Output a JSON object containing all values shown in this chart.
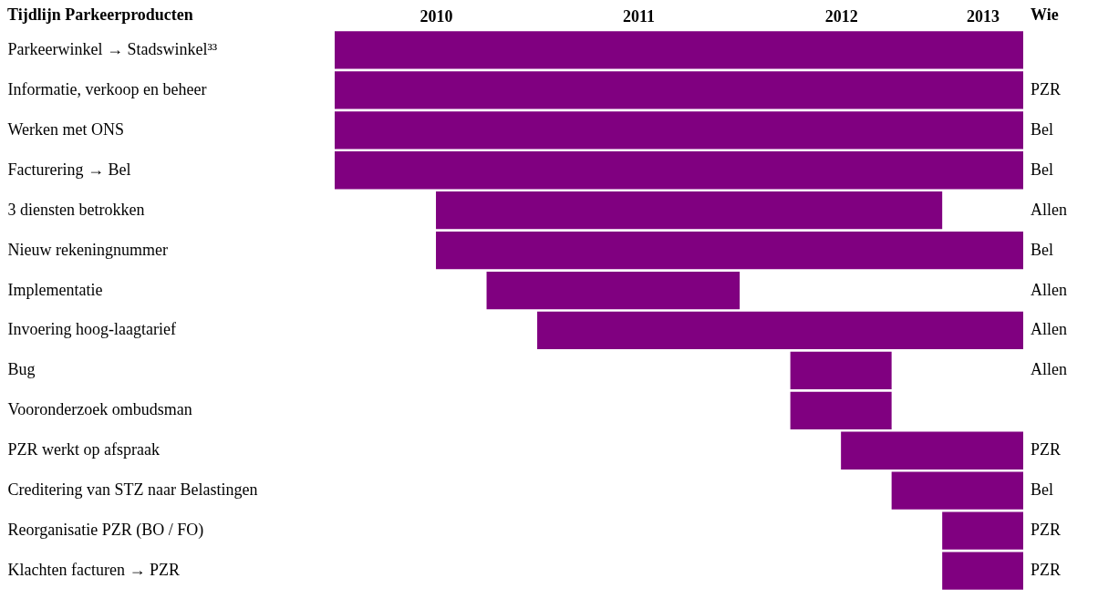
{
  "chart_data": {
    "type": "bar",
    "orientation": "horizontal",
    "title": "Tijdlijn Parkeerproducten",
    "y2label": "Wie",
    "categories": [
      "Parkeerwinkel → Stadswinkel³³",
      "Informatie, verkoop en beheer",
      "Werken met ONS",
      "Facturering → Bel",
      "3 diensten betrokken",
      "Nieuw rekeningnummer",
      "Implementatie",
      "Invoering hoog-laagtarief",
      "Bug",
      "Vooronderzoek ombudsman",
      "PZR werkt op afspraak",
      "Creditering van STZ naar Belastingen",
      "Reorganisatie PZR (BO / FO)",
      "Klachten facturen → PZR"
    ],
    "y2_categories": [
      null,
      "PZR",
      "Bel",
      "Bel",
      "Allen",
      "Bel",
      "Allen",
      "Allen",
      "Allen",
      null,
      "PZR",
      "Bel",
      "PZR",
      "PZR"
    ],
    "base": [
      2010,
      2010,
      2010,
      2010,
      2010.5,
      2010.5,
      2010.75,
      2011,
      2012.25,
      2012.25,
      2012.5,
      2012.75,
      2013,
      2013
    ],
    "values": [
      3.4,
      3.4,
      3.4,
      3.4,
      2.5,
      2.9,
      1.25,
      2.4,
      0.5,
      0.5,
      0.9,
      0.65,
      0.4,
      0.4
    ],
    "color": "#800080",
    "xlim": [
      2010,
      2013.4
    ],
    "xticks": [
      {
        "value": 2010.5,
        "label": "2010"
      },
      {
        "value": 2011.5,
        "label": "2011"
      },
      {
        "value": 2012.5,
        "label": "2012"
      },
      {
        "value": 2013.2,
        "label": "2013"
      }
    ]
  }
}
